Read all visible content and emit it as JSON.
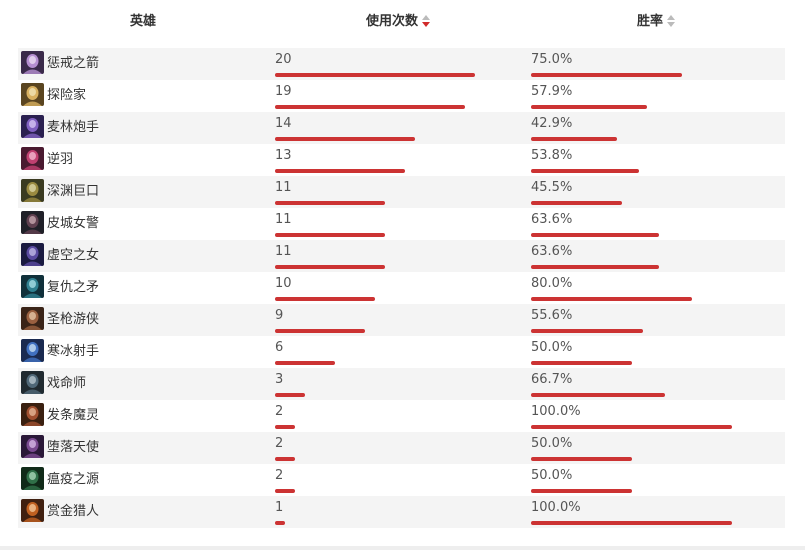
{
  "header": {
    "hero_label": "英雄",
    "usage_label": "使用次数",
    "winrate_label": "胜率",
    "active_sort": "usage-desc"
  },
  "colors": {
    "bar": "#cc3333",
    "sort_active": "#d12b2b",
    "sort_inactive": "#bbbbbb",
    "row_alt": "#f4f4f4"
  },
  "rows": [
    {
      "name": "惩戒之箭",
      "usage": "20",
      "winrate": "75.0%",
      "usage_value": 20,
      "winrate_value": 75.0,
      "avatar": "portrait-violet"
    },
    {
      "name": "探险家",
      "usage": "19",
      "winrate": "57.9%",
      "usage_value": 19,
      "winrate_value": 57.9,
      "avatar": "portrait-gold"
    },
    {
      "name": "麦林炮手",
      "usage": "14",
      "winrate": "42.9%",
      "usage_value": 14,
      "winrate_value": 42.9,
      "avatar": "portrait-purple"
    },
    {
      "name": "逆羽",
      "usage": "13",
      "winrate": "53.8%",
      "usage_value": 13,
      "winrate_value": 53.8,
      "avatar": "portrait-magenta"
    },
    {
      "name": "深渊巨口",
      "usage": "11",
      "winrate": "45.5%",
      "usage_value": 11,
      "winrate_value": 45.5,
      "avatar": "portrait-olive"
    },
    {
      "name": "皮城女警",
      "usage": "11",
      "winrate": "63.6%",
      "usage_value": 11,
      "winrate_value": 63.6,
      "avatar": "portrait-dark"
    },
    {
      "name": "虚空之女",
      "usage": "11",
      "winrate": "63.6%",
      "usage_value": 11,
      "winrate_value": 63.6,
      "avatar": "portrait-indigo"
    },
    {
      "name": "复仇之矛",
      "usage": "10",
      "winrate": "80.0%",
      "usage_value": 10,
      "winrate_value": 80.0,
      "avatar": "portrait-teal"
    },
    {
      "name": "圣枪游侠",
      "usage": "9",
      "winrate": "55.6%",
      "usage_value": 9,
      "winrate_value": 55.6,
      "avatar": "portrait-brown"
    },
    {
      "name": "寒冰射手",
      "usage": "6",
      "winrate": "50.0%",
      "usage_value": 6,
      "winrate_value": 50.0,
      "avatar": "portrait-blue"
    },
    {
      "name": "戏命师",
      "usage": "3",
      "winrate": "66.7%",
      "usage_value": 3,
      "winrate_value": 66.7,
      "avatar": "portrait-slate"
    },
    {
      "name": "发条魔灵",
      "usage": "2",
      "winrate": "100.0%",
      "usage_value": 2,
      "winrate_value": 100.0,
      "avatar": "portrait-rust"
    },
    {
      "name": "堕落天使",
      "usage": "2",
      "winrate": "50.0%",
      "usage_value": 2,
      "winrate_value": 50.0,
      "avatar": "portrait-plum"
    },
    {
      "name": "瘟疫之源",
      "usage": "2",
      "winrate": "50.0%",
      "usage_value": 2,
      "winrate_value": 50.0,
      "avatar": "portrait-green"
    },
    {
      "name": "赏金猎人",
      "usage": "1",
      "winrate": "100.0%",
      "usage_value": 1,
      "winrate_value": 100.0,
      "avatar": "portrait-orange"
    }
  ]
}
